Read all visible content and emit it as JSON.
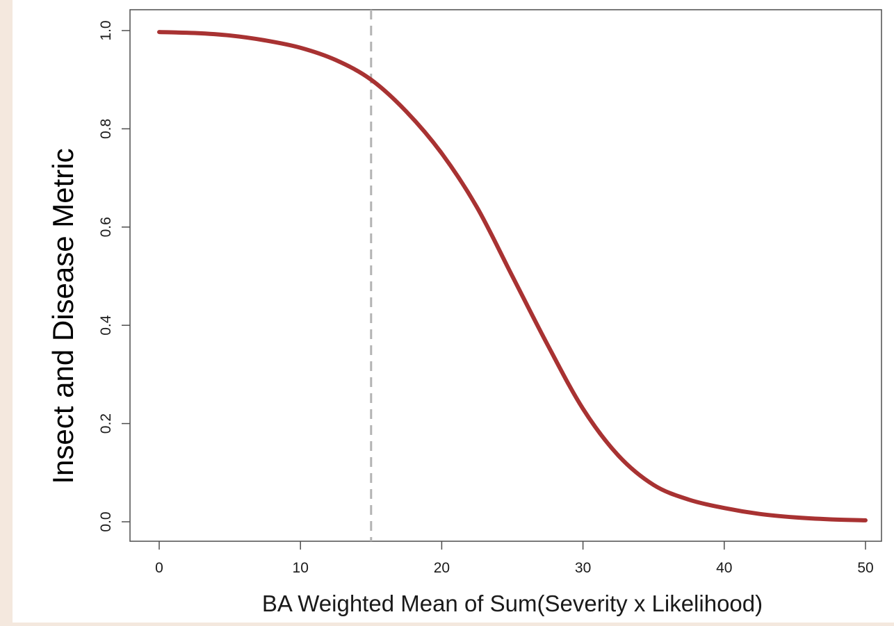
{
  "chart_data": {
    "type": "line",
    "title": "",
    "xlabel": "BA Weighted Mean of Sum(Severity x Likelihood)",
    "ylabel": "Insect and Disease Metric",
    "xlim": [
      0,
      50
    ],
    "ylim": [
      0,
      1
    ],
    "x_ticks": [
      "0",
      "10",
      "20",
      "30",
      "40",
      "50"
    ],
    "y_ticks": [
      "0.0",
      "0.2",
      "0.4",
      "0.6",
      "0.8",
      "1.0"
    ],
    "grid": false,
    "series": [
      {
        "color": "#a83232",
        "x": [
          0,
          2.5,
          5,
          7.5,
          10,
          12.5,
          15,
          17.5,
          20,
          22.5,
          25,
          27.5,
          30,
          32.5,
          35,
          37.5,
          40,
          42.5,
          45,
          47.5,
          50
        ],
        "y": [
          0.997,
          0.995,
          0.99,
          0.98,
          0.965,
          0.94,
          0.9,
          0.835,
          0.75,
          0.64,
          0.5,
          0.36,
          0.23,
          0.135,
          0.075,
          0.045,
          0.028,
          0.016,
          0.009,
          0.005,
          0.003
        ]
      }
    ],
    "reference_lines": [
      {
        "axis": "x",
        "value": 15,
        "style": "dashed",
        "color": "#b3b3b3"
      }
    ]
  }
}
